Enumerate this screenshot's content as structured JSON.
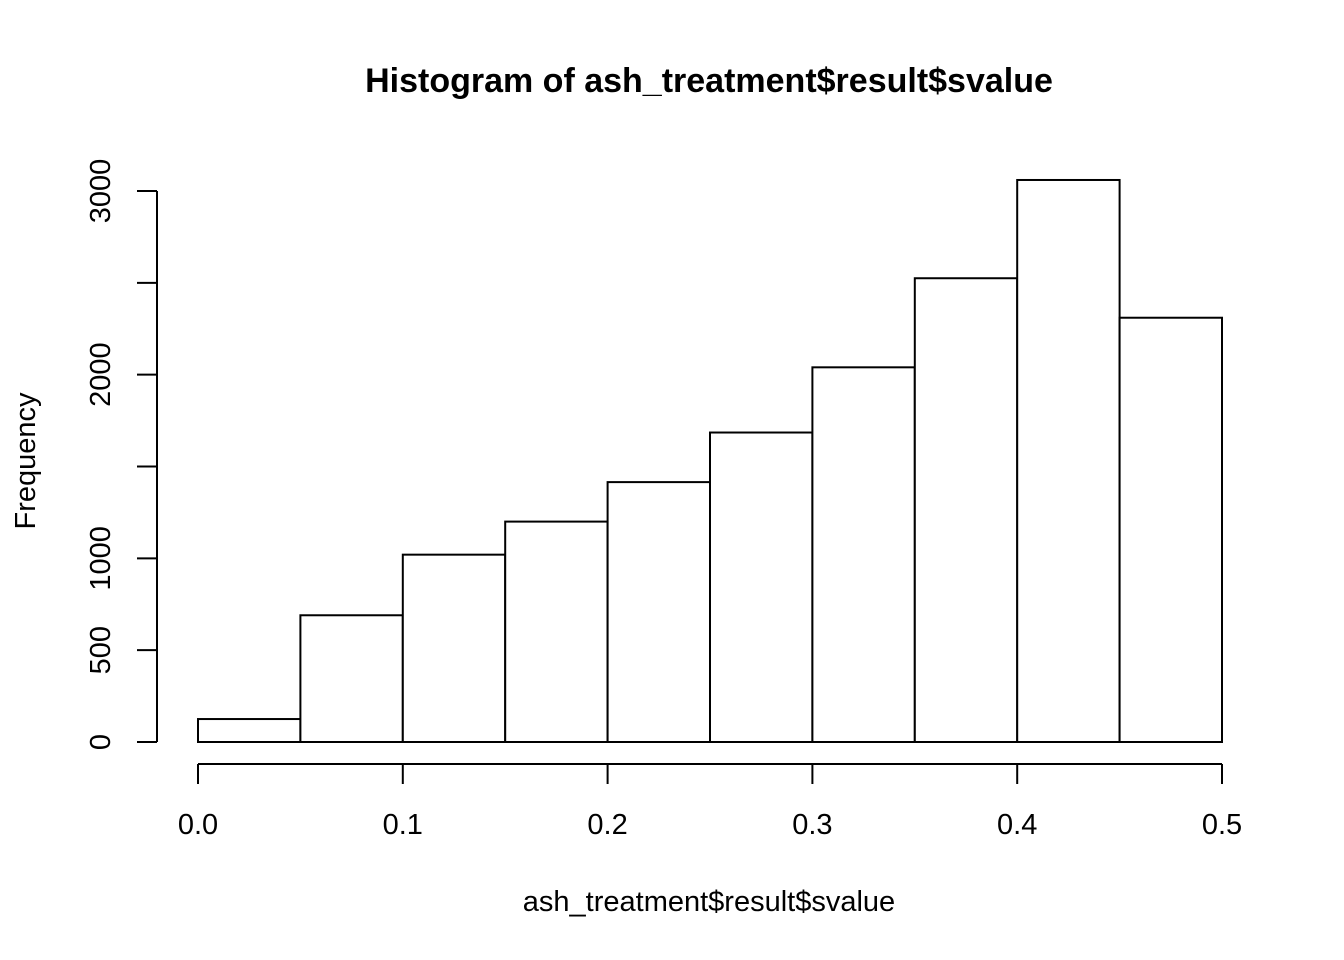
{
  "chart_data": {
    "type": "bar",
    "title": "Histogram of ash_treatment$result$svalue",
    "xlabel": "ash_treatment$result$svalue",
    "ylabel": "Frequency",
    "bins": [
      {
        "start": 0.0,
        "end": 0.05,
        "count": 125
      },
      {
        "start": 0.05,
        "end": 0.1,
        "count": 690
      },
      {
        "start": 0.1,
        "end": 0.15,
        "count": 1020
      },
      {
        "start": 0.15,
        "end": 0.2,
        "count": 1200
      },
      {
        "start": 0.2,
        "end": 0.25,
        "count": 1415
      },
      {
        "start": 0.25,
        "end": 0.3,
        "count": 1685
      },
      {
        "start": 0.3,
        "end": 0.35,
        "count": 2040
      },
      {
        "start": 0.35,
        "end": 0.4,
        "count": 2525
      },
      {
        "start": 0.4,
        "end": 0.45,
        "count": 3060
      },
      {
        "start": 0.45,
        "end": 0.5,
        "count": 2310
      }
    ],
    "xlim": [
      0,
      0.5
    ],
    "ylim": [
      0,
      3000
    ],
    "x_ticks": [
      0.0,
      0.1,
      0.2,
      0.3,
      0.4,
      0.5
    ],
    "x_tick_labels": [
      "0.0",
      "0.1",
      "0.2",
      "0.3",
      "0.4",
      "0.5"
    ],
    "y_ticks": [
      0,
      500,
      1000,
      1500,
      2000,
      2500,
      3000
    ],
    "y_tick_labels": [
      "0",
      "500",
      "1000",
      "",
      "2000",
      "",
      "3000"
    ],
    "grid": false,
    "legend": "none"
  }
}
